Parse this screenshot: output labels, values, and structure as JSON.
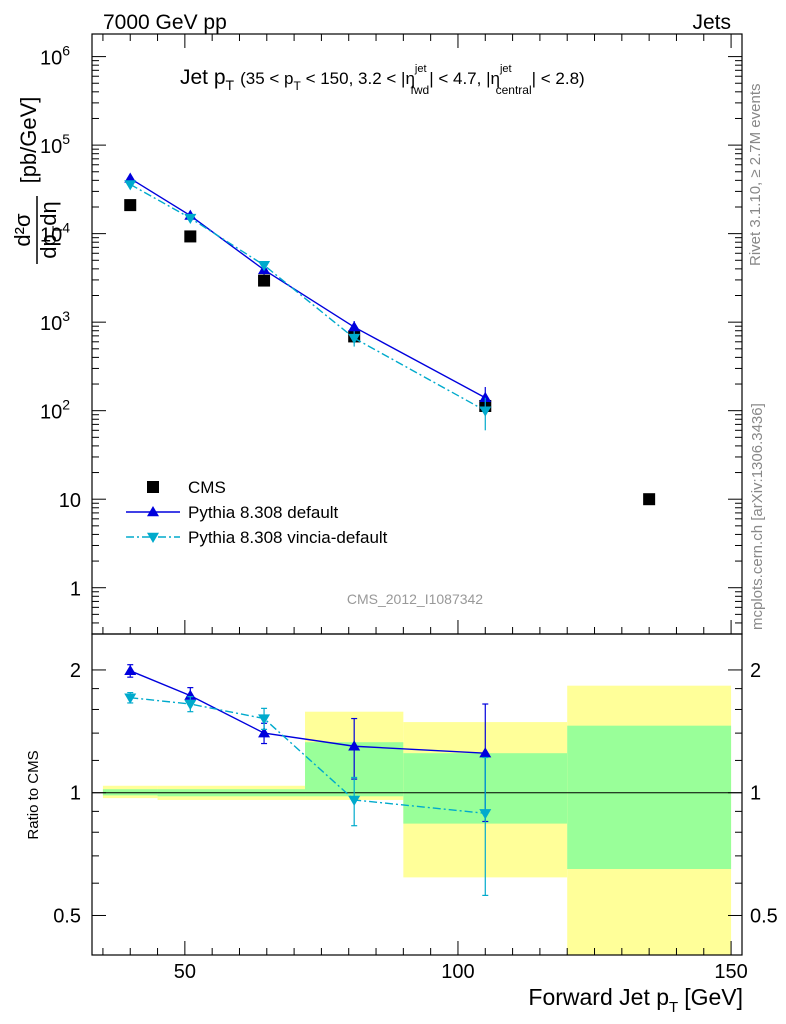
{
  "header": {
    "left": "7000 GeV pp",
    "right": "Jets"
  },
  "plot_title": {
    "main": "Jet p",
    "main_sub": "T",
    "range_open": "(35 < p",
    "range_sub1": "T",
    "range_mid": " < 150, 3.2 < |η",
    "eta_fwd_sup": "jet",
    "eta_fwd_sub": "fwd",
    "range_mid2": "| < 4.7, |η",
    "eta_cen_sup": "jet",
    "eta_cen_sub": "central",
    "range_close": "| < 2.8)"
  },
  "side_labels": {
    "rivet": "Rivet 3.1.10, ≥ 2.7M events",
    "mcplots": "mcplots.cern.ch [arXiv:1306.3436]"
  },
  "watermark": "CMS_2012_I1087342",
  "axes": {
    "ylabel_main": {
      "num": "d²σ",
      "den": "dp",
      "den_sub": "T",
      "den_tail": "dη",
      "unit": "[pb/GeV]"
    },
    "ylabel_ratio": "Ratio to CMS",
    "xlabel": "Forward Jet p",
    "xlabel_sub": "T",
    "xlabel_unit": "[GeV]"
  },
  "chart_data": [
    {
      "type": "scatter",
      "panel": "main",
      "yscale": "log",
      "xlim": [
        33,
        152
      ],
      "ylim": [
        0.3,
        1800000
      ],
      "y_ticks": [
        {
          "value": 1000000,
          "base": "10",
          "exp": "6"
        },
        {
          "value": 100000,
          "base": "10",
          "exp": "5"
        },
        {
          "value": 10000,
          "base": "10",
          "exp": "4"
        },
        {
          "value": 1000,
          "base": "10",
          "exp": "3"
        },
        {
          "value": 100,
          "base": "10",
          "exp": "2"
        },
        {
          "value": 10,
          "base": "10",
          "exp": ""
        },
        {
          "value": 1,
          "base": "1",
          "exp": ""
        }
      ],
      "legend_position": "bottom-left",
      "series": [
        {
          "name": "CMS",
          "color": "#000000",
          "marker": "square",
          "points": [
            {
              "x": 40,
              "y": 21000
            },
            {
              "x": 51,
              "y": 9300
            },
            {
              "x": 64.5,
              "y": 2950
            },
            {
              "x": 81,
              "y": 690
            },
            {
              "x": 105,
              "y": 113
            },
            {
              "x": 135,
              "y": 10
            }
          ]
        },
        {
          "name": "Pythia 8.308 default",
          "color": "#0000dd",
          "marker": "triangle-up",
          "linestyle": "solid",
          "points": [
            {
              "x": 40,
              "y": 42000,
              "err": 3000
            },
            {
              "x": 51,
              "y": 16000,
              "err": 1200
            },
            {
              "x": 64.5,
              "y": 3900,
              "err": 450
            },
            {
              "x": 81,
              "y": 880,
              "err": 150
            },
            {
              "x": 105,
              "y": 140,
              "err": 45
            }
          ]
        },
        {
          "name": "Pythia 8.308 vincia-default",
          "color": "#00aacc",
          "marker": "triangle-down",
          "linestyle": "dashdot",
          "points": [
            {
              "x": 40,
              "y": 36000,
              "err": 2500
            },
            {
              "x": 51,
              "y": 15000,
              "err": 1200
            },
            {
              "x": 64.5,
              "y": 4400,
              "err": 500
            },
            {
              "x": 81,
              "y": 660,
              "err": 130
            },
            {
              "x": 105,
              "y": 100,
              "err": 40
            }
          ]
        }
      ]
    },
    {
      "type": "scatter",
      "panel": "ratio",
      "yscale": "log",
      "xlim": [
        33,
        152
      ],
      "ylim": [
        0.4,
        2.45
      ],
      "x_ticks": [
        {
          "value": 50,
          "label": "50"
        },
        {
          "value": 100,
          "label": "100"
        },
        {
          "value": 150,
          "label": "150"
        }
      ],
      "y_ticks": [
        {
          "value": 2,
          "label": "2"
        },
        {
          "value": 1,
          "label": "1"
        },
        {
          "value": 0.5,
          "label": "0.5"
        }
      ],
      "bands": [
        {
          "x0": 35,
          "x1": 45,
          "yellow": [
            0.97,
            1.04
          ],
          "green": [
            0.985,
            1.02
          ]
        },
        {
          "x0": 45,
          "x1": 72,
          "yellow": [
            0.96,
            1.04
          ],
          "green": [
            0.98,
            1.02
          ]
        },
        {
          "x0": 72,
          "x1": 90,
          "yellow": [
            0.96,
            1.58
          ],
          "green": [
            0.98,
            1.33
          ]
        },
        {
          "x0": 90,
          "x1": 120,
          "yellow": [
            0.62,
            1.49
          ],
          "green": [
            0.84,
            1.25
          ]
        },
        {
          "x0": 120,
          "x1": 150,
          "yellow": [
            0.32,
            1.83
          ],
          "green": [
            0.65,
            1.46
          ]
        }
      ],
      "series": [
        {
          "name": "Pythia 8.308 default",
          "color": "#0000dd",
          "marker": "triangle-up",
          "linestyle": "solid",
          "points": [
            {
              "x": 40,
              "y": 1.99,
              "err": 0.07
            },
            {
              "x": 51,
              "y": 1.73,
              "err": 0.08
            },
            {
              "x": 64.5,
              "y": 1.4,
              "err": 0.08
            },
            {
              "x": 81,
              "y": 1.3,
              "err": 0.22
            },
            {
              "x": 105,
              "y": 1.25,
              "err": 0.4
            }
          ]
        },
        {
          "name": "Pythia 8.308 vincia-default",
          "color": "#00aacc",
          "marker": "triangle-down",
          "linestyle": "dashdot",
          "points": [
            {
              "x": 40,
              "y": 1.71,
              "err": 0.05
            },
            {
              "x": 51,
              "y": 1.65,
              "err": 0.07
            },
            {
              "x": 64.5,
              "y": 1.52,
              "err": 0.09
            },
            {
              "x": 81,
              "y": 0.96,
              "err": 0.13
            },
            {
              "x": 105,
              "y": 0.89,
              "err": 0.33
            }
          ]
        }
      ]
    }
  ]
}
